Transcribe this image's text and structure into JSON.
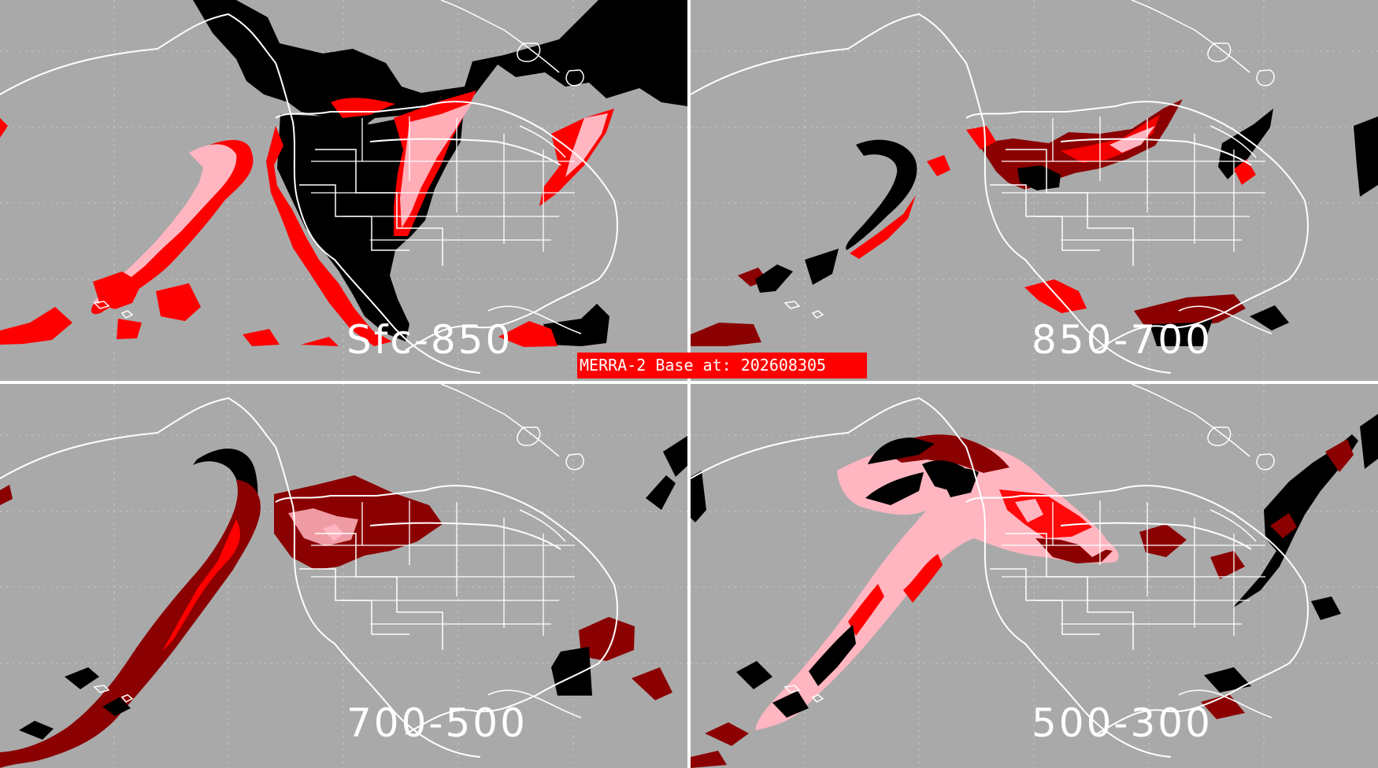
{
  "figure": {
    "banner_text": "MERRA-2 Base at: 202608305",
    "colors": {
      "background": "#a9a9a9",
      "coastline": "#ffffff",
      "divider": "#ffffff",
      "black_mask": "#000000",
      "red": "#ff0000",
      "pink": "#ffb6c1",
      "dark_red": "#8b0000"
    },
    "panels": [
      {
        "id": "top-left",
        "label": "Sfc-850"
      },
      {
        "id": "top-right",
        "label": "850-700"
      },
      {
        "id": "bottom-left",
        "label": "700-500"
      },
      {
        "id": "bottom-right",
        "label": "500-300"
      }
    ]
  }
}
